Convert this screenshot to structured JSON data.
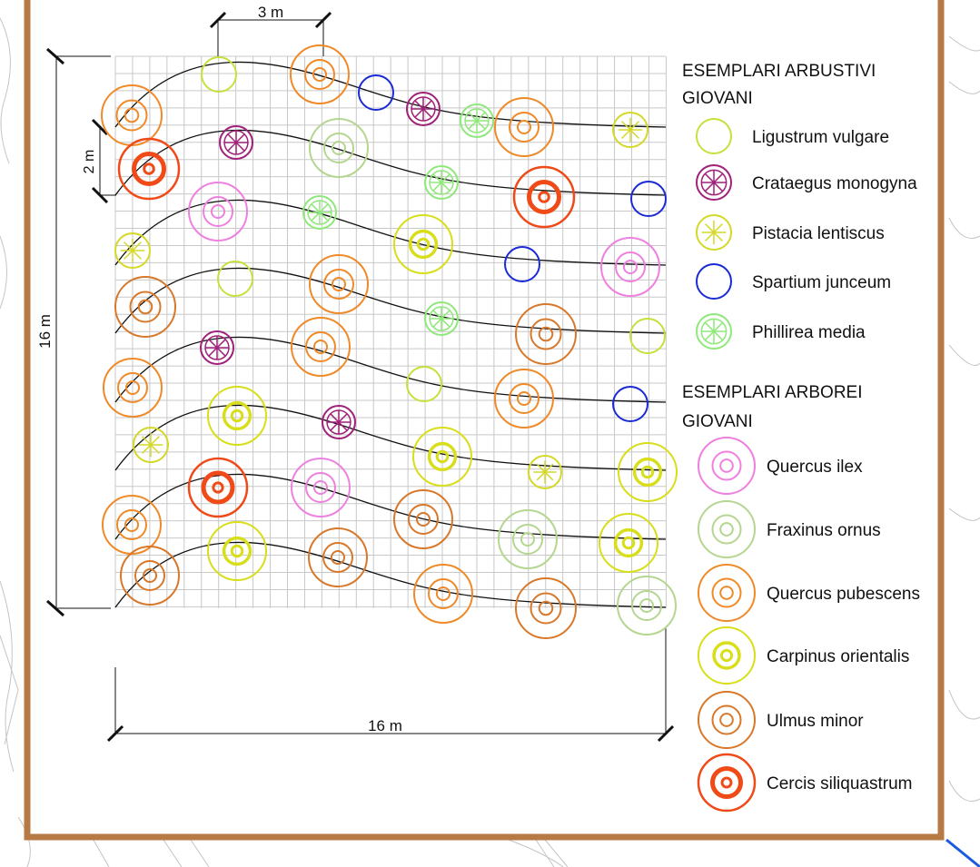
{
  "dimensions": {
    "top_spacing": "3 m",
    "row_spacing": "2 m",
    "height": "16 m",
    "width": "16 m"
  },
  "legend": {
    "shrubs_title_line1": "ESEMPLARI ARBUSTIVI",
    "shrubs_title_line2": "GIOVANI",
    "trees_title_line1": "ESEMPLARI ARBOREI",
    "trees_title_line2": "GIOVANI",
    "shrubs": [
      {
        "key": "ligustrum",
        "label": "Ligustrum vulgare"
      },
      {
        "key": "crataegus",
        "label": "Crataegus monogyna"
      },
      {
        "key": "pistacia",
        "label": "Pistacia lentiscus"
      },
      {
        "key": "spartium",
        "label": "Spartium junceum"
      },
      {
        "key": "phillirea",
        "label": "Phillirea media"
      }
    ],
    "trees": [
      {
        "key": "quercus_ilex",
        "label": "Quercus ilex"
      },
      {
        "key": "fraxinus",
        "label": "Fraxinus ornus"
      },
      {
        "key": "quercus_pub",
        "label": "Quercus pubescens"
      },
      {
        "key": "carpinus",
        "label": "Carpinus orientalis"
      },
      {
        "key": "ulmus",
        "label": "Ulmus minor"
      },
      {
        "key": "cercis",
        "label": "Cercis siliquastrum"
      }
    ]
  },
  "species_style": {
    "ligustrum": {
      "color": "#c8e03c",
      "symbol": "circle"
    },
    "crataegus": {
      "color": "#a0207a",
      "symbol": "spoke"
    },
    "pistacia": {
      "color": "#d4d826",
      "symbol": "star"
    },
    "spartium": {
      "color": "#1a2ad6",
      "symbol": "circle"
    },
    "phillirea": {
      "color": "#8fe87a",
      "symbol": "spoke"
    },
    "quercus_ilex": {
      "color": "#ee80e0",
      "symbol": "ring3"
    },
    "fraxinus": {
      "color": "#b5d690",
      "symbol": "ring3"
    },
    "quercus_pub": {
      "color": "#f08a28",
      "symbol": "ring3"
    },
    "carpinus": {
      "color": "#d8de1a",
      "symbol": "ring_bold"
    },
    "ulmus": {
      "color": "#d8782a",
      "symbol": "ring3"
    },
    "cercis": {
      "color": "#f04a18",
      "symbol": "ring_heavy"
    }
  },
  "colors": {
    "frame": "#b87a45",
    "grid": "#c8c8c8",
    "background_lines": "#c0c0c0",
    "row_curve": "#111111",
    "corner_accent": "#1a5ae0"
  }
}
